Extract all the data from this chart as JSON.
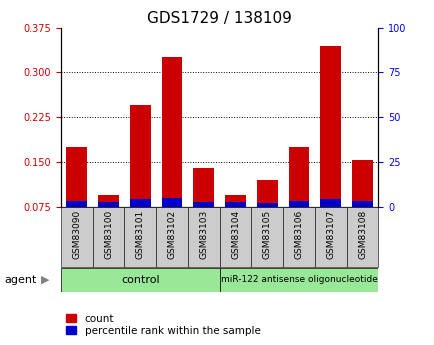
{
  "title": "GDS1729 / 138109",
  "categories": [
    "GSM83090",
    "GSM83100",
    "GSM83101",
    "GSM83102",
    "GSM83103",
    "GSM83104",
    "GSM83105",
    "GSM83106",
    "GSM83107",
    "GSM83108"
  ],
  "red_values": [
    0.175,
    0.095,
    0.245,
    0.325,
    0.14,
    0.095,
    0.12,
    0.175,
    0.345,
    0.153
  ],
  "blue_values": [
    0.01,
    0.008,
    0.013,
    0.015,
    0.008,
    0.008,
    0.007,
    0.01,
    0.013,
    0.01
  ],
  "ylim_left": [
    0.075,
    0.375
  ],
  "ylim_right": [
    0,
    100
  ],
  "yticks_left": [
    0.075,
    0.15,
    0.225,
    0.3,
    0.375
  ],
  "yticks_right": [
    0,
    25,
    50,
    75,
    100
  ],
  "red_color": "#cc0000",
  "blue_color": "#0000cc",
  "bar_width": 0.65,
  "bg_color": "#ffffff",
  "control_label": "control",
  "treatment_label": "miR-122 antisense oligonucleotide",
  "group_bg_color": "#98e898",
  "sample_bg_color": "#cccccc",
  "agent_label": "agent",
  "legend_count": "count",
  "legend_pct": "percentile rank within the sample",
  "title_fontsize": 11,
  "tick_fontsize": 7,
  "n_control": 5,
  "n_treatment": 5
}
